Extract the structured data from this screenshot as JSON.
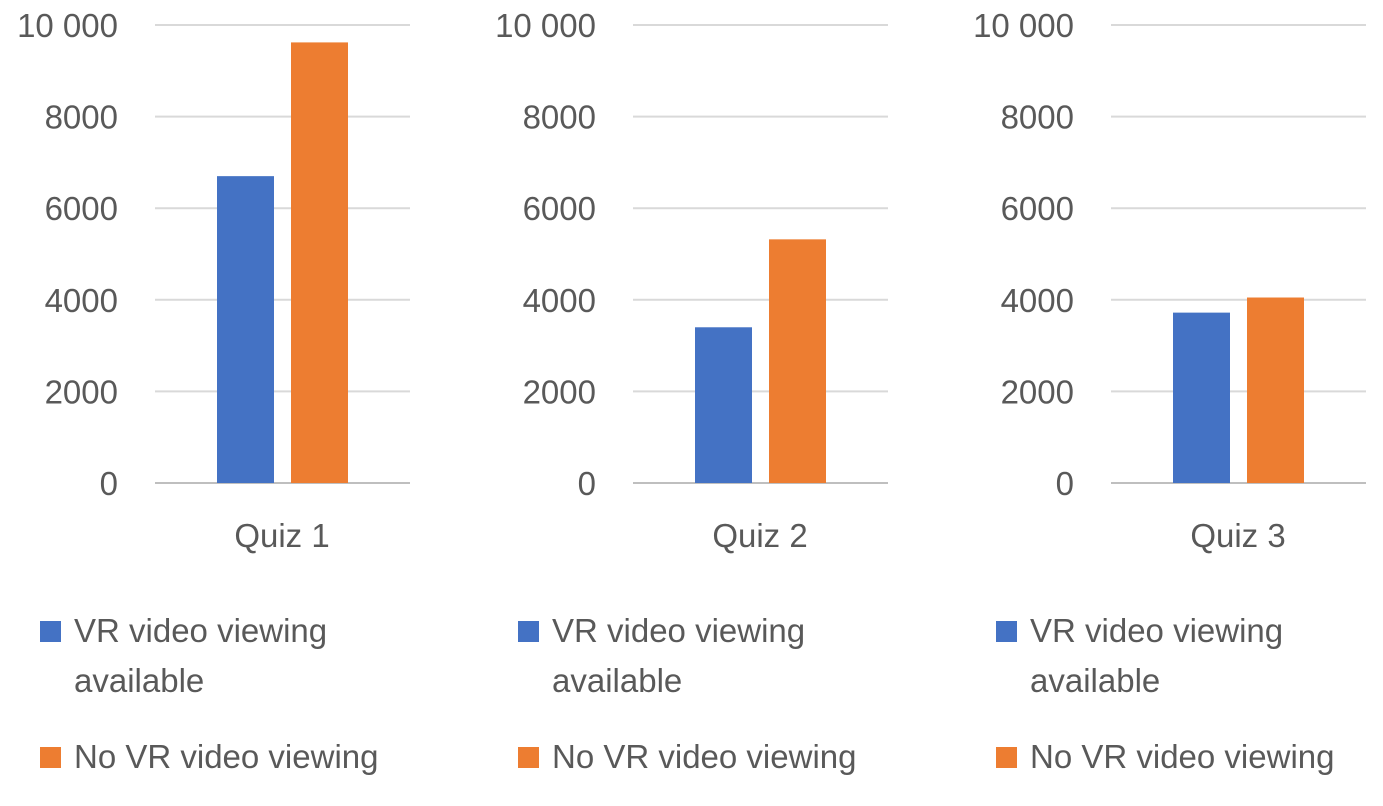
{
  "chart_data": [
    {
      "type": "bar",
      "categories": [
        "Quiz 1"
      ],
      "series": [
        {
          "name": "VR video viewing available",
          "values": [
            6700
          ],
          "color": "#4472C4"
        },
        {
          "name": "No VR video viewing",
          "values": [
            9620
          ],
          "color": "#ED7D31"
        }
      ],
      "ylim": [
        0,
        10000
      ],
      "yticks": [
        "0",
        "2000",
        "4000",
        "6000",
        "8000",
        "10 000"
      ],
      "grid": true,
      "legend": "bottom"
    },
    {
      "type": "bar",
      "categories": [
        "Quiz 2"
      ],
      "series": [
        {
          "name": "VR video viewing available",
          "values": [
            3400
          ],
          "color": "#4472C4"
        },
        {
          "name": "No VR video viewing",
          "values": [
            5320
          ],
          "color": "#ED7D31"
        }
      ],
      "ylim": [
        0,
        10000
      ],
      "yticks": [
        "0",
        "2000",
        "4000",
        "6000",
        "8000",
        "10 000"
      ],
      "grid": true,
      "legend": "bottom"
    },
    {
      "type": "bar",
      "categories": [
        "Quiz 3"
      ],
      "series": [
        {
          "name": "VR video viewing available",
          "values": [
            3720
          ],
          "color": "#4472C4"
        },
        {
          "name": "No VR video viewing",
          "values": [
            4050
          ],
          "color": "#ED7D31"
        }
      ],
      "ylim": [
        0,
        10000
      ],
      "yticks": [
        "0",
        "2000",
        "4000",
        "6000",
        "8000",
        "10 000"
      ],
      "grid": true,
      "legend": "bottom"
    }
  ]
}
